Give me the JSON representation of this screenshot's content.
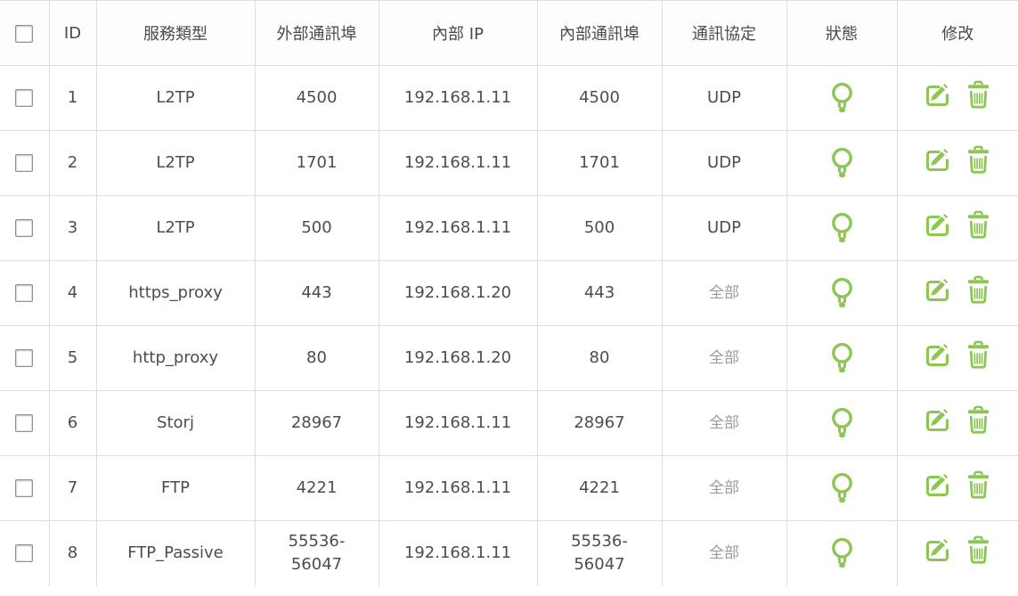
{
  "colors": {
    "accent_green": "#8dc653",
    "text": "#4d4d4d",
    "muted_text": "#9b9b9b",
    "border": "#dddddd"
  },
  "icons": {
    "status": "lightbulb-icon",
    "edit": "edit-icon",
    "delete": "trash-icon"
  },
  "table": {
    "columns": [
      {
        "key": "select",
        "label": ""
      },
      {
        "key": "id",
        "label": "ID"
      },
      {
        "key": "service",
        "label": "服務類型"
      },
      {
        "key": "external_port",
        "label": "外部通訊埠"
      },
      {
        "key": "internal_ip",
        "label": "內部 IP"
      },
      {
        "key": "internal_port",
        "label": "內部通訊埠"
      },
      {
        "key": "protocol",
        "label": "通訊協定"
      },
      {
        "key": "status",
        "label": "狀態"
      },
      {
        "key": "modify",
        "label": "修改"
      }
    ],
    "rows": [
      {
        "id": "1",
        "service": "L2TP",
        "external_port": "4500",
        "internal_ip": "192.168.1.11",
        "internal_port": "4500",
        "protocol": "UDP",
        "protocol_muted": false,
        "status": "on"
      },
      {
        "id": "2",
        "service": "L2TP",
        "external_port": "1701",
        "internal_ip": "192.168.1.11",
        "internal_port": "1701",
        "protocol": "UDP",
        "protocol_muted": false,
        "status": "on"
      },
      {
        "id": "3",
        "service": "L2TP",
        "external_port": "500",
        "internal_ip": "192.168.1.11",
        "internal_port": "500",
        "protocol": "UDP",
        "protocol_muted": false,
        "status": "on"
      },
      {
        "id": "4",
        "service": "https_proxy",
        "external_port": "443",
        "internal_ip": "192.168.1.20",
        "internal_port": "443",
        "protocol": "全部",
        "protocol_muted": true,
        "status": "on"
      },
      {
        "id": "5",
        "service": "http_proxy",
        "external_port": "80",
        "internal_ip": "192.168.1.20",
        "internal_port": "80",
        "protocol": "全部",
        "protocol_muted": true,
        "status": "on"
      },
      {
        "id": "6",
        "service": "Storj",
        "external_port": "28967",
        "internal_ip": "192.168.1.11",
        "internal_port": "28967",
        "protocol": "全部",
        "protocol_muted": true,
        "status": "on"
      },
      {
        "id": "7",
        "service": "FTP",
        "external_port": "4221",
        "internal_ip": "192.168.1.11",
        "internal_port": "4221",
        "protocol": "全部",
        "protocol_muted": true,
        "status": "on"
      },
      {
        "id": "8",
        "service": "FTP_Passive",
        "external_port": "55536-56047",
        "internal_ip": "192.168.1.11",
        "internal_port": "55536-56047",
        "protocol": "全部",
        "protocol_muted": true,
        "status": "on"
      }
    ]
  }
}
